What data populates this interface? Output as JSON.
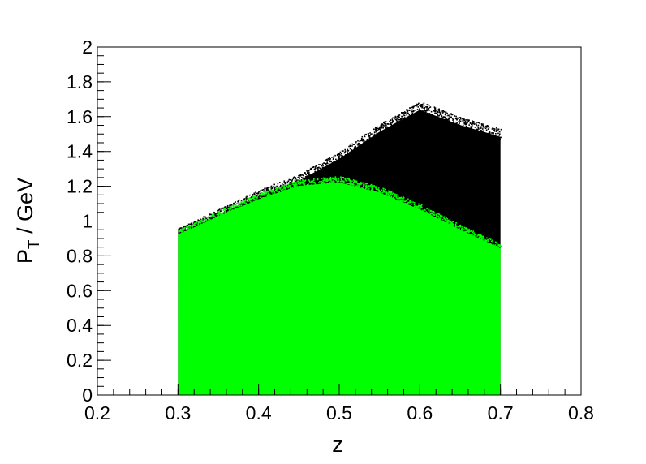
{
  "chart_data": {
    "type": "scatter",
    "title": "",
    "xlabel": "z",
    "ylabel_main": "P",
    "ylabel_sub": "T",
    "ylabel_rest": " / GeV",
    "xlim": [
      0.2,
      0.8
    ],
    "ylim": [
      0,
      2
    ],
    "x_ticks": [
      "0.2",
      "0.3",
      "0.4",
      "0.5",
      "0.6",
      "0.7",
      "0.8"
    ],
    "y_ticks": [
      "0",
      "0.2",
      "0.4",
      "0.6",
      "0.8",
      "1",
      "1.2",
      "1.4",
      "1.6",
      "1.8",
      "2"
    ],
    "grid": false,
    "legend": "none",
    "series": [
      {
        "color": "#000000",
        "x_range": [
          0.3,
          0.7
        ],
        "upper_envelope": [
          [
            0.3,
            0.96
          ],
          [
            0.35,
            1.07
          ],
          [
            0.4,
            1.18
          ],
          [
            0.45,
            1.27
          ],
          [
            0.5,
            1.4
          ],
          [
            0.55,
            1.56
          ],
          [
            0.6,
            1.69
          ],
          [
            0.65,
            1.6
          ],
          [
            0.7,
            1.53
          ]
        ]
      },
      {
        "color": "#00ff00",
        "x_range": [
          0.3,
          0.7
        ],
        "upper_envelope": [
          [
            0.3,
            0.95
          ],
          [
            0.35,
            1.06
          ],
          [
            0.4,
            1.16
          ],
          [
            0.45,
            1.24
          ],
          [
            0.5,
            1.26
          ],
          [
            0.55,
            1.2
          ],
          [
            0.6,
            1.1
          ],
          [
            0.65,
            0.98
          ],
          [
            0.7,
            0.87
          ]
        ]
      }
    ]
  }
}
